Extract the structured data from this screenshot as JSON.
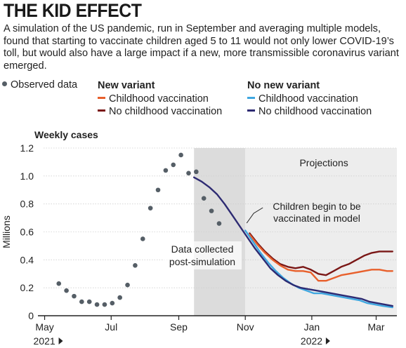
{
  "title": "THE KID EFFECT",
  "subtitle": "A simulation of the US pandemic, run in September and averaging multiple models, found that starting to vaccinate children aged 5 to 11 would not only lower COVID-19’s toll, but would also have a large impact if a new, more transmissible coronavirus variant emerged.",
  "legend": {
    "observed_label": "Observed data",
    "groups": [
      {
        "title": "New variant",
        "items": [
          {
            "label": "Childhood vaccination",
            "color": "#e8602c"
          },
          {
            "label": "No childhood vaccination",
            "color": "#7a1716"
          }
        ]
      },
      {
        "title": "No new variant",
        "items": [
          {
            "label": "Childhood vaccination",
            "color": "#3fa7e0"
          },
          {
            "label": "No childhood vaccination",
            "color": "#2d2a72"
          }
        ]
      }
    ]
  },
  "chart_data": {
    "type": "line",
    "title": "THE KID EFFECT",
    "chart_label": "Weekly cases",
    "ylabel": "Millions",
    "ylim": [
      0,
      1.2
    ],
    "xlim": [
      "2021-04-30",
      "2022-03-20"
    ],
    "y_ticks": [
      "0",
      "0.2",
      "0.4",
      "0.6",
      "0.8",
      "1.0",
      "1.2"
    ],
    "x_ticks": [
      {
        "date": "2021-05-01",
        "label": "May",
        "year": "2021"
      },
      {
        "date": "2021-07-01",
        "label": "Jul",
        "year": ""
      },
      {
        "date": "2021-09-01",
        "label": "Sep",
        "year": ""
      },
      {
        "date": "2021-11-01",
        "label": "Nov",
        "year": ""
      },
      {
        "date": "2022-01-01",
        "label": "Jan",
        "year": "2022"
      },
      {
        "date": "2022-03-01",
        "label": "Mar",
        "year": ""
      }
    ],
    "grid": true,
    "shaded_regions": [
      {
        "start": "2021-09-15",
        "end": "2021-11-01",
        "label": "",
        "color": "#dcdcdc"
      },
      {
        "start": "2021-11-01",
        "end": "2022-03-20",
        "label": "Projections",
        "color": "#ededed"
      }
    ],
    "observed": {
      "name": "Observed data",
      "color": "#555e66",
      "x": [
        "2021-05-14",
        "2021-05-21",
        "2021-05-28",
        "2021-06-04",
        "2021-06-11",
        "2021-06-18",
        "2021-06-25",
        "2021-07-02",
        "2021-07-09",
        "2021-07-16",
        "2021-07-23",
        "2021-07-30",
        "2021-08-06",
        "2021-08-13",
        "2021-08-20",
        "2021-08-27",
        "2021-09-03",
        "2021-09-10",
        "2021-09-17",
        "2021-09-24",
        "2021-10-01",
        "2021-10-08"
      ],
      "y": [
        0.23,
        0.18,
        0.14,
        0.1,
        0.1,
        0.08,
        0.08,
        0.09,
        0.13,
        0.22,
        0.36,
        0.55,
        0.77,
        0.9,
        1.04,
        1.08,
        1.15,
        1.02,
        1.03,
        0.84,
        0.75,
        0.66
      ]
    },
    "series": [
      {
        "name": "New variant, childhood vaccination",
        "color": "#e8602c",
        "x": [
          "2021-11-05",
          "2021-11-12",
          "2021-11-19",
          "2021-11-26",
          "2021-12-03",
          "2021-12-10",
          "2021-12-17",
          "2021-12-24",
          "2021-12-31",
          "2022-01-07",
          "2022-01-14",
          "2022-01-21",
          "2022-01-28",
          "2022-02-04",
          "2022-02-11",
          "2022-02-18",
          "2022-02-25",
          "2022-03-04",
          "2022-03-11",
          "2022-03-16"
        ],
        "y": [
          0.58,
          0.51,
          0.45,
          0.4,
          0.36,
          0.33,
          0.32,
          0.32,
          0.31,
          0.25,
          0.25,
          0.27,
          0.29,
          0.3,
          0.31,
          0.32,
          0.33,
          0.33,
          0.32,
          0.32
        ]
      },
      {
        "name": "New variant, no childhood vaccination",
        "color": "#7a1716",
        "x": [
          "2021-11-05",
          "2021-11-12",
          "2021-11-19",
          "2021-11-26",
          "2021-12-03",
          "2021-12-10",
          "2021-12-17",
          "2021-12-24",
          "2021-12-31",
          "2022-01-07",
          "2022-01-14",
          "2022-01-21",
          "2022-01-28",
          "2022-02-04",
          "2022-02-11",
          "2022-02-18",
          "2022-02-25",
          "2022-03-04",
          "2022-03-11",
          "2022-03-16"
        ],
        "y": [
          0.59,
          0.52,
          0.46,
          0.41,
          0.37,
          0.35,
          0.34,
          0.35,
          0.33,
          0.3,
          0.29,
          0.32,
          0.35,
          0.37,
          0.4,
          0.43,
          0.45,
          0.46,
          0.46,
          0.46
        ]
      },
      {
        "name": "No new variant, childhood vaccination",
        "color": "#3fa7e0",
        "x": [
          "2021-11-01",
          "2021-11-08",
          "2021-11-15",
          "2021-11-22",
          "2021-11-29",
          "2021-12-06",
          "2021-12-13",
          "2021-12-20",
          "2021-12-27",
          "2022-01-03",
          "2022-01-10",
          "2022-01-17",
          "2022-01-24",
          "2022-01-31",
          "2022-02-07",
          "2022-02-14",
          "2022-02-21",
          "2022-02-28",
          "2022-03-07",
          "2022-03-16"
        ],
        "y": [
          0.61,
          0.53,
          0.45,
          0.38,
          0.32,
          0.27,
          0.23,
          0.2,
          0.18,
          0.16,
          0.16,
          0.15,
          0.14,
          0.13,
          0.12,
          0.11,
          0.09,
          0.08,
          0.07,
          0.06
        ]
      },
      {
        "name": "No new variant, no childhood vaccination",
        "color": "#2d2a72",
        "x": [
          "2021-09-15",
          "2021-09-22",
          "2021-09-29",
          "2021-10-06",
          "2021-10-13",
          "2021-10-20",
          "2021-10-27",
          "2021-11-03",
          "2021-11-10",
          "2021-11-17",
          "2021-11-24",
          "2021-12-01",
          "2021-12-08",
          "2021-12-15",
          "2021-12-22",
          "2021-12-29",
          "2022-01-05",
          "2022-01-12",
          "2022-01-19",
          "2022-01-26",
          "2022-02-02",
          "2022-02-09",
          "2022-02-16",
          "2022-02-23",
          "2022-03-02",
          "2022-03-09",
          "2022-03-16"
        ],
        "y": [
          0.99,
          0.96,
          0.92,
          0.87,
          0.8,
          0.72,
          0.64,
          0.56,
          0.48,
          0.41,
          0.34,
          0.29,
          0.25,
          0.22,
          0.2,
          0.19,
          0.18,
          0.17,
          0.16,
          0.15,
          0.14,
          0.13,
          0.12,
          0.1,
          0.09,
          0.08,
          0.07
        ]
      }
    ],
    "annotations": [
      {
        "text": [
          "Children begin to be",
          "vaccinated in model"
        ],
        "anchor": "2021-11-01"
      },
      {
        "text": [
          "Data collected",
          "post-simulation"
        ],
        "anchor": "2021-10-08"
      }
    ]
  }
}
